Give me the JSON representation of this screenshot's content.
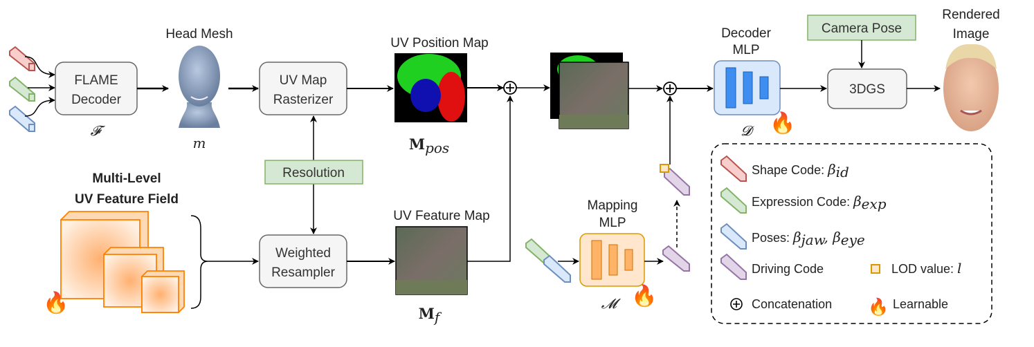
{
  "nodes": {
    "flame_decoder": {
      "line1": "FLAME",
      "line2": "Decoder",
      "symbol": "𝓕"
    },
    "head_mesh": {
      "title": "Head Mesh",
      "symbol": "m"
    },
    "uv_rasterizer": {
      "line1": "UV Map",
      "line2": "Rasterizer"
    },
    "uv_position_map": {
      "title": "UV Position Map",
      "symbol": "M",
      "subscript": "pos"
    },
    "resolution": {
      "label": "Resolution"
    },
    "feature_field": {
      "line1": "Multi-Level",
      "line2": "UV Feature Field"
    },
    "weighted_resampler": {
      "line1": "Weighted",
      "line2": "Resampler"
    },
    "uv_feature_map": {
      "title": "UV Feature Map",
      "symbol": "M",
      "subscript": "f"
    },
    "mapping_mlp": {
      "line1": "Mapping",
      "line2": "MLP",
      "symbol": "𝓜"
    },
    "decoder_mlp": {
      "line1": "Decoder",
      "line2": "MLP",
      "symbol": "𝓓"
    },
    "camera_pose": {
      "label": "Camera Pose"
    },
    "gs": {
      "label": "3DGS"
    },
    "rendered_image": {
      "line1": "Rendered",
      "line2": "Image"
    }
  },
  "legend": {
    "shape": {
      "label": "Shape Code: ",
      "math": "β",
      "sub": "id"
    },
    "expression": {
      "label": "Expression Code: ",
      "math": "β",
      "sub": "exp"
    },
    "poses": {
      "label": "Poses: ",
      "math1": "β",
      "sub1": "jaw",
      "math2": "β",
      "sub2": "eye"
    },
    "driving": {
      "label": "Driving Code"
    },
    "lod": {
      "label": "LOD value: ",
      "math": "l"
    },
    "concat": {
      "label": "Concatenation"
    },
    "learnable": {
      "label": "Learnable"
    }
  },
  "colors": {
    "shape": "#e06666",
    "expression": "#82b366",
    "poses": "#6c8ebf",
    "driving": "#9673a6",
    "lod": "#d79b00",
    "feature": "#ff8000",
    "green_box": "#d5e8d4",
    "decoder_bar": "#3d8ef0"
  },
  "icons": [
    "fire-icon",
    "concat-plus-icon",
    "code-bar-icon",
    "lod-cube-icon"
  ]
}
